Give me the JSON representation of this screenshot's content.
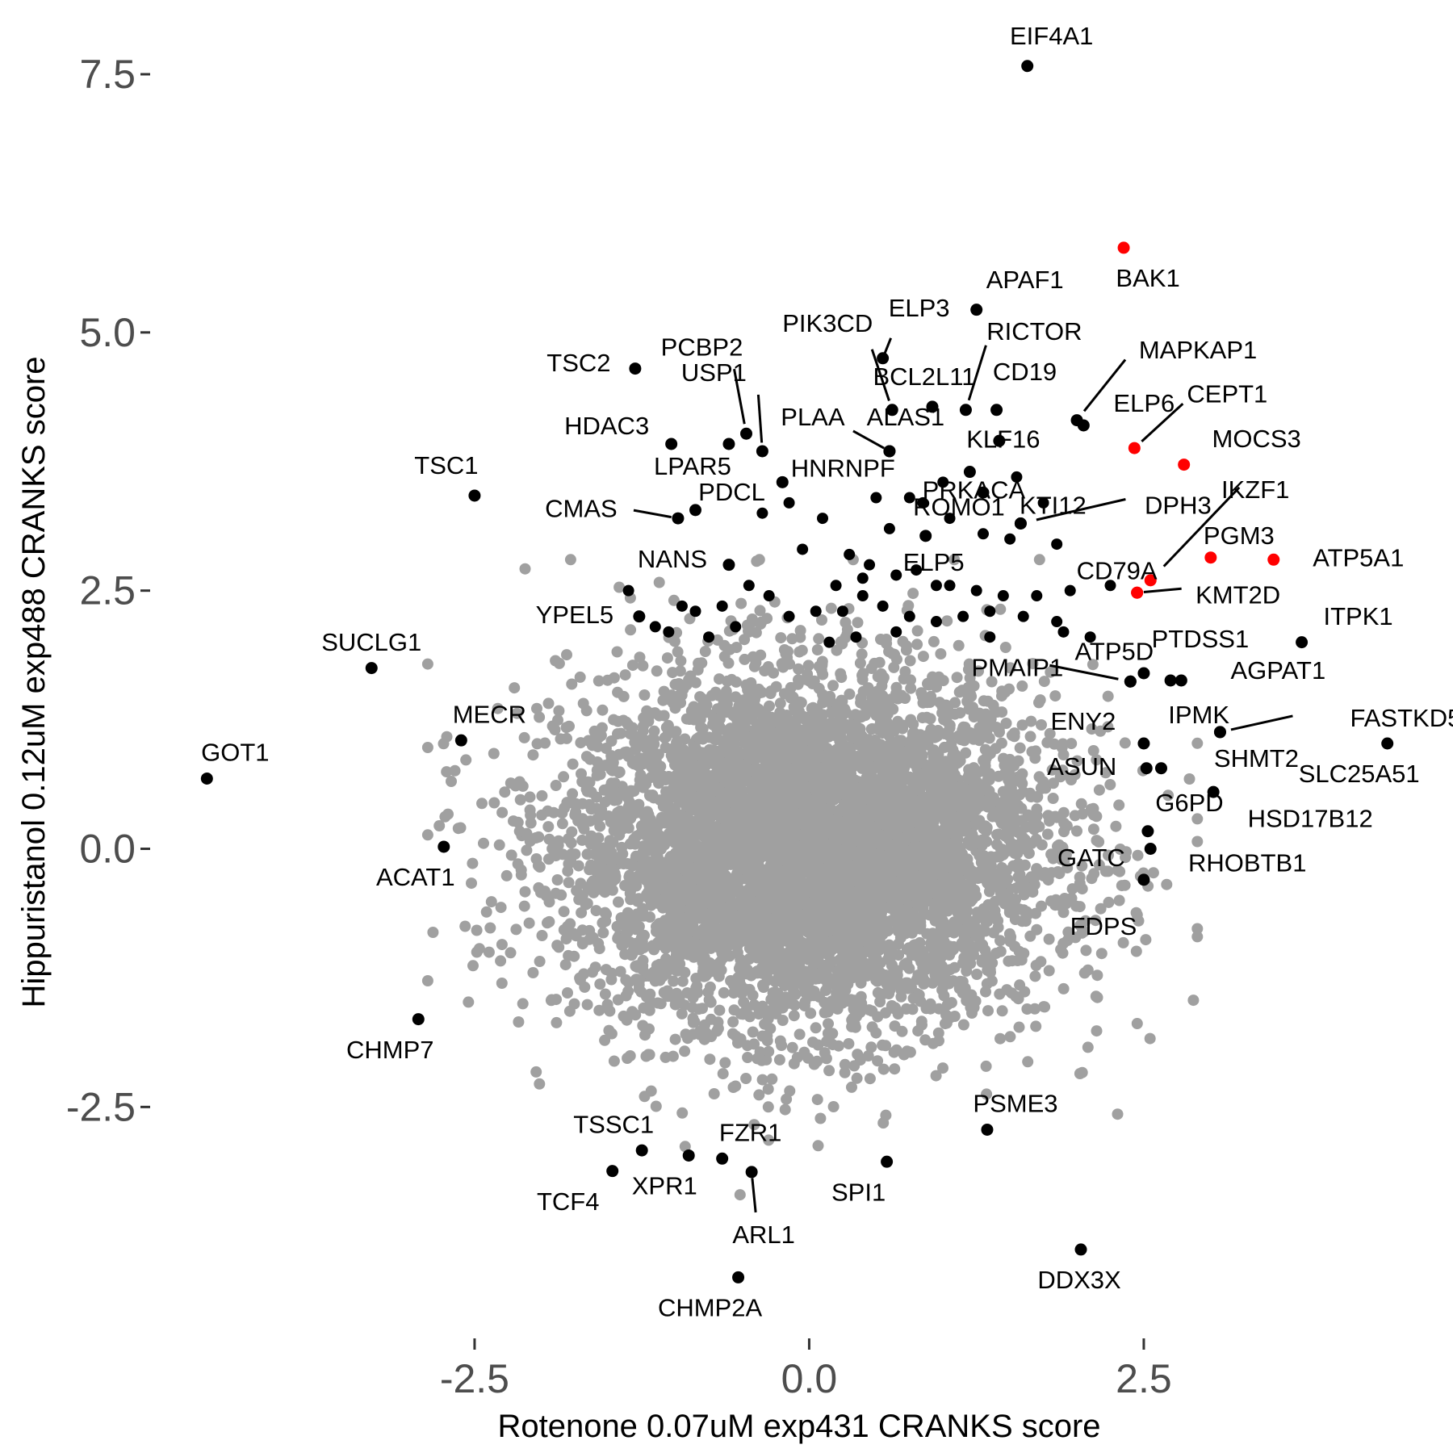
{
  "chart_data": {
    "type": "scatter",
    "xlabel": "Rotenone 0.07uM exp431 CRANKS score",
    "ylabel": "Hippuristanol 0.12uM exp488 CRANKS score",
    "xlim": [
      -4.9,
      4.75
    ],
    "ylim": [
      -4.6,
      7.75
    ],
    "x_ticks": [
      -2.5,
      0.0,
      2.5
    ],
    "x_tick_labels": [
      "-2.5",
      "0.0",
      "2.5"
    ],
    "y_ticks": [
      -2.5,
      0.0,
      2.5,
      5.0,
      7.5
    ],
    "y_tick_labels": [
      "-2.5",
      "0.0",
      "2.5",
      "5.0",
      "7.5"
    ],
    "grid": false,
    "legend": "none",
    "colors": {
      "background_genes": "#a0a0a0",
      "highlighted": "#000000",
      "red_set": "#ff0000",
      "axis_text": "#4d4d4d"
    },
    "background_cloud": {
      "description_value": "thousands of grey genes centred near (0, 0)",
      "x_mean": 0.0,
      "y_mean": 0.0,
      "x_sd": 0.9,
      "y_sd": 0.85
    },
    "points": [
      {
        "label": "EIF4A1",
        "x": 1.63,
        "y": 7.58,
        "color": "black"
      },
      {
        "label": "BAK1",
        "x": 2.35,
        "y": 5.82,
        "color": "red"
      },
      {
        "label": "APAF1",
        "x": 1.25,
        "y": 5.22,
        "color": "black"
      },
      {
        "label": "ELP3",
        "x": 0.55,
        "y": 4.75,
        "color": "black"
      },
      {
        "label": "TSC2",
        "x": -1.3,
        "y": 4.65,
        "color": "black"
      },
      {
        "label": "PCBP2",
        "x": -0.47,
        "y": 4.02,
        "color": "black"
      },
      {
        "label": "USP1",
        "x": -0.35,
        "y": 3.85,
        "color": "black"
      },
      {
        "label": "PIK3CD",
        "x": 0.62,
        "y": 4.25,
        "color": "black"
      },
      {
        "label": "BCL2L11",
        "x": 0.92,
        "y": 4.28,
        "color": "black"
      },
      {
        "label": "RICTOR",
        "x": 1.17,
        "y": 4.25,
        "color": "black"
      },
      {
        "label": "CD19",
        "x": 1.4,
        "y": 4.25,
        "color": "black"
      },
      {
        "label": "MAPKAP1",
        "x": 2.0,
        "y": 4.15,
        "color": "black"
      },
      {
        "label": "ELP6",
        "x": 2.05,
        "y": 4.1,
        "color": "black"
      },
      {
        "label": "CEPT1",
        "x": 2.43,
        "y": 3.88,
        "color": "red"
      },
      {
        "label": "MOCS3",
        "x": 2.8,
        "y": 3.72,
        "color": "red"
      },
      {
        "label": "HDAC3",
        "x": -1.03,
        "y": 3.92,
        "color": "black"
      },
      {
        "label": "PLAA",
        "x": 0.6,
        "y": 3.85,
        "color": "black"
      },
      {
        "label": "ALAS1",
        "x": 0.6,
        "y": 3.85,
        "color": "black"
      },
      {
        "label": "KLF16",
        "x": 1.42,
        "y": 3.95,
        "color": "black"
      },
      {
        "label": "TSC1",
        "x": -2.5,
        "y": 3.42,
        "color": "black"
      },
      {
        "label": "LPAR5",
        "x": -0.6,
        "y": 3.92,
        "color": "black"
      },
      {
        "label": "HNRNPF",
        "x": -0.2,
        "y": 3.55,
        "color": "black"
      },
      {
        "label": "PRKACA",
        "x": 1.2,
        "y": 3.65,
        "color": "black"
      },
      {
        "label": "CMAS",
        "x": -0.98,
        "y": 3.2,
        "color": "black"
      },
      {
        "label": "PDCL",
        "x": -0.85,
        "y": 3.28,
        "color": "black"
      },
      {
        "label": "ROMO1",
        "x": 1.3,
        "y": 3.45,
        "color": "black"
      },
      {
        "label": "KTI12",
        "x": 1.58,
        "y": 3.15,
        "color": "black"
      },
      {
        "label": "DPH3",
        "x": 1.58,
        "y": 3.15,
        "color": "black"
      },
      {
        "label": "ELP5",
        "x": 0.87,
        "y": 3.03,
        "color": "black"
      },
      {
        "label": "IKZF1",
        "x": 2.55,
        "y": 2.6,
        "color": "red"
      },
      {
        "label": "PGM3",
        "x": 3.0,
        "y": 2.82,
        "color": "red"
      },
      {
        "label": "ATP5A1",
        "x": 3.47,
        "y": 2.8,
        "color": "red"
      },
      {
        "label": "CD79A",
        "x": 2.45,
        "y": 2.48,
        "color": "red"
      },
      {
        "label": "KMT2D",
        "x": 2.45,
        "y": 2.48,
        "color": "red"
      },
      {
        "label": "NANS",
        "x": -0.6,
        "y": 2.75,
        "color": "black"
      },
      {
        "label": "YPEL5",
        "x": -1.27,
        "y": 2.25,
        "color": "black"
      },
      {
        "label": "ITPK1",
        "x": 3.68,
        "y": 2.0,
        "color": "black"
      },
      {
        "label": "PTDSS1",
        "x": 2.5,
        "y": 1.7,
        "color": "black"
      },
      {
        "label": "ATP5D",
        "x": 2.4,
        "y": 1.62,
        "color": "black"
      },
      {
        "label": "PMAIP1",
        "x": 2.4,
        "y": 1.62,
        "color": "black"
      },
      {
        "label": "AGPAT1",
        "x": 2.78,
        "y": 1.63,
        "color": "black"
      },
      {
        "label": "IPMK",
        "x": 2.7,
        "y": 1.63,
        "color": "black"
      },
      {
        "label": "SUCLG1",
        "x": -3.27,
        "y": 1.75,
        "color": "black"
      },
      {
        "label": "FASTKD5",
        "x": 3.07,
        "y": 1.13,
        "color": "black"
      },
      {
        "label": "SHMT2",
        "x": 3.07,
        "y": 1.13,
        "color": "black"
      },
      {
        "label": "ENY2",
        "x": 2.5,
        "y": 1.02,
        "color": "black"
      },
      {
        "label": "SLC25A51",
        "x": 4.32,
        "y": 1.02,
        "color": "black"
      },
      {
        "label": "MECR",
        "x": -2.6,
        "y": 1.05,
        "color": "black"
      },
      {
        "label": "ASUN",
        "x": 2.52,
        "y": 0.78,
        "color": "black"
      },
      {
        "label": "GOT1",
        "x": -4.5,
        "y": 0.68,
        "color": "black"
      },
      {
        "label": "G6PD",
        "x": 2.63,
        "y": 0.78,
        "color": "black"
      },
      {
        "label": "HSD17B12",
        "x": 3.02,
        "y": 0.55,
        "color": "black"
      },
      {
        "label": "GATC",
        "x": 2.53,
        "y": 0.17,
        "color": "black"
      },
      {
        "label": "RHOBTB1",
        "x": 2.55,
        "y": 0.0,
        "color": "black"
      },
      {
        "label": "FDPS",
        "x": 2.5,
        "y": -0.3,
        "color": "black"
      },
      {
        "label": "ACAT1",
        "x": -2.73,
        "y": 0.02,
        "color": "black"
      },
      {
        "label": "CHMP7",
        "x": -2.92,
        "y": -1.65,
        "color": "black"
      },
      {
        "label": "PSME3",
        "x": 1.33,
        "y": -2.72,
        "color": "black"
      },
      {
        "label": "TSSC1",
        "x": -1.25,
        "y": -2.92,
        "color": "black"
      },
      {
        "label": "FZR1",
        "x": -0.65,
        "y": -3.0,
        "color": "black"
      },
      {
        "label": "XPR1",
        "x": -0.9,
        "y": -2.97,
        "color": "black"
      },
      {
        "label": "TCF4",
        "x": -1.47,
        "y": -3.12,
        "color": "black"
      },
      {
        "label": "ARL1",
        "x": -0.43,
        "y": -3.13,
        "color": "black"
      },
      {
        "label": "SPI1",
        "x": 0.58,
        "y": -3.03,
        "color": "black"
      },
      {
        "label": "DDX3X",
        "x": 2.03,
        "y": -3.88,
        "color": "black"
      },
      {
        "label": "CHMP2A",
        "x": -0.53,
        "y": -4.15,
        "color": "black"
      }
    ],
    "unlabeled_black_points": [
      [
        -0.15,
        3.35
      ],
      [
        -0.35,
        3.25
      ],
      [
        0.1,
        3.2
      ],
      [
        -0.05,
        2.9
      ],
      [
        0.3,
        2.85
      ],
      [
        0.45,
        2.75
      ],
      [
        0.65,
        2.65
      ],
      [
        0.8,
        2.7
      ],
      [
        1.05,
        2.55
      ],
      [
        1.25,
        2.5
      ],
      [
        1.45,
        2.45
      ],
      [
        1.7,
        2.45
      ],
      [
        1.95,
        2.5
      ],
      [
        2.25,
        2.55
      ],
      [
        0.2,
        2.55
      ],
      [
        0.4,
        2.45
      ],
      [
        0.55,
        2.35
      ],
      [
        0.75,
        2.25
      ],
      [
        0.95,
        2.2
      ],
      [
        1.15,
        2.25
      ],
      [
        1.35,
        2.3
      ],
      [
        1.6,
        2.25
      ],
      [
        1.85,
        2.2
      ],
      [
        -0.3,
        2.45
      ],
      [
        -0.45,
        2.55
      ],
      [
        -0.65,
        2.35
      ],
      [
        -0.85,
        2.3
      ],
      [
        -1.05,
        2.1
      ],
      [
        -0.55,
        2.15
      ],
      [
        -0.15,
        2.25
      ],
      [
        0.05,
        2.3
      ],
      [
        0.15,
        2.0
      ],
      [
        0.35,
        2.05
      ],
      [
        0.65,
        2.1
      ],
      [
        1.35,
        2.05
      ],
      [
        1.9,
        2.1
      ],
      [
        2.1,
        2.05
      ],
      [
        -0.75,
        2.05
      ],
      [
        -0.95,
        2.35
      ],
      [
        1.5,
        3.0
      ],
      [
        1.75,
        3.35
      ],
      [
        1.85,
        2.95
      ],
      [
        0.6,
        3.1
      ],
      [
        0.75,
        3.4
      ],
      [
        1.05,
        3.2
      ],
      [
        1.3,
        3.05
      ],
      [
        1.55,
        3.6
      ],
      [
        1.0,
        3.55
      ],
      [
        0.85,
        3.35
      ],
      [
        0.5,
        3.4
      ],
      [
        -1.35,
        2.5
      ],
      [
        -1.15,
        2.15
      ],
      [
        0.95,
        2.55
      ],
      [
        0.4,
        2.62
      ],
      [
        0.25,
        2.3
      ]
    ]
  }
}
